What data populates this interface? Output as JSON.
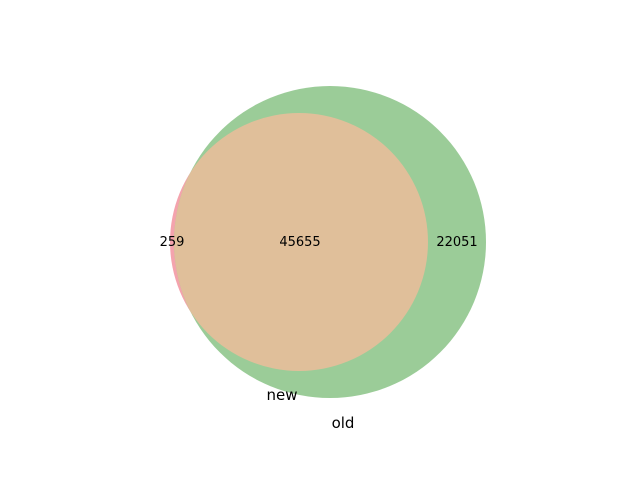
{
  "venn": {
    "sets": [
      {
        "label": "new",
        "size": 45914,
        "color": "#f4a3ad"
      },
      {
        "label": "old",
        "size": 67706,
        "color": "#9bcc98"
      }
    ],
    "regions": {
      "new_only": "259",
      "both": "45655",
      "old_only": "22051"
    },
    "overlap_color": "#e0bf9a"
  }
}
